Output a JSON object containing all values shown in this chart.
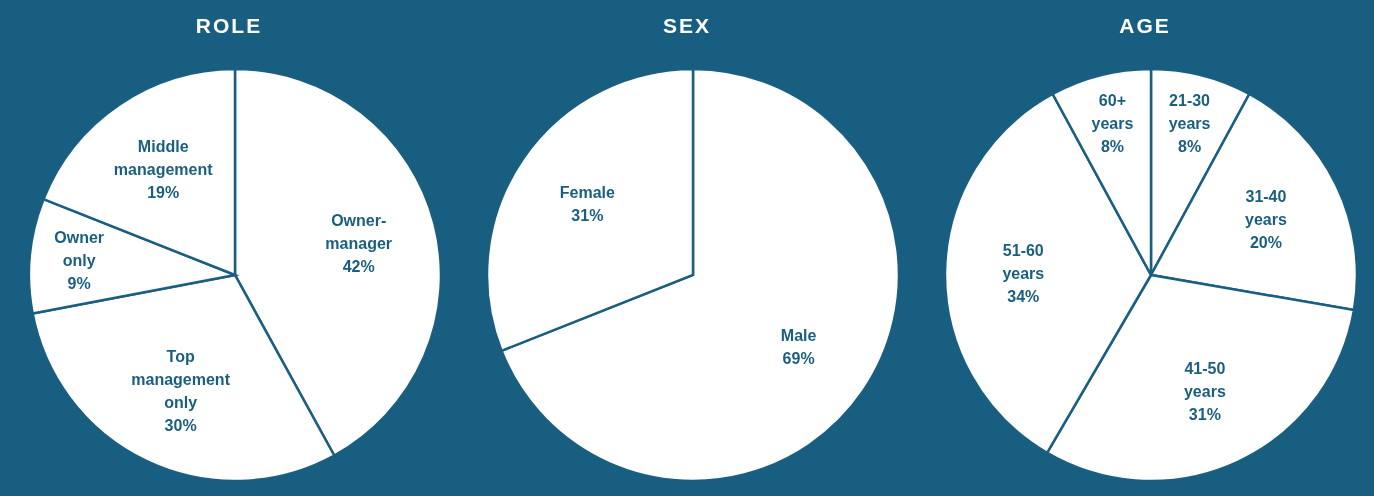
{
  "chart_data": [
    {
      "type": "pie",
      "title": "ROLE",
      "categories": [
        "Owner-manager",
        "Top management only",
        "Owner only",
        "Middle management"
      ],
      "values": [
        42,
        30,
        9,
        19
      ],
      "colors": [
        "#ffffff",
        "#ffffff",
        "#ffffff",
        "#ffffff"
      ],
      "value_labels": [
        "42%",
        "30%",
        "9%",
        "19%"
      ],
      "legend": false
    },
    {
      "type": "pie",
      "title": "SEX",
      "categories": [
        "Male",
        "Female"
      ],
      "values": [
        69,
        31
      ],
      "colors": [
        "#ffffff",
        "#ffffff"
      ],
      "value_labels": [
        "69%",
        "31%"
      ],
      "legend": false
    },
    {
      "type": "pie",
      "title": "AGE",
      "categories": [
        "21-30 years",
        "31-40 years",
        "41-50 years",
        "51-60 years",
        "60+ years"
      ],
      "values": [
        8,
        20,
        31,
        34,
        8
      ],
      "colors": [
        "#ffffff",
        "#ffffff",
        "#ffffff",
        "#ffffff",
        "#ffffff"
      ],
      "value_labels": [
        "8%",
        "20%",
        "31%",
        "34%",
        "8%"
      ],
      "legend": false
    }
  ]
}
